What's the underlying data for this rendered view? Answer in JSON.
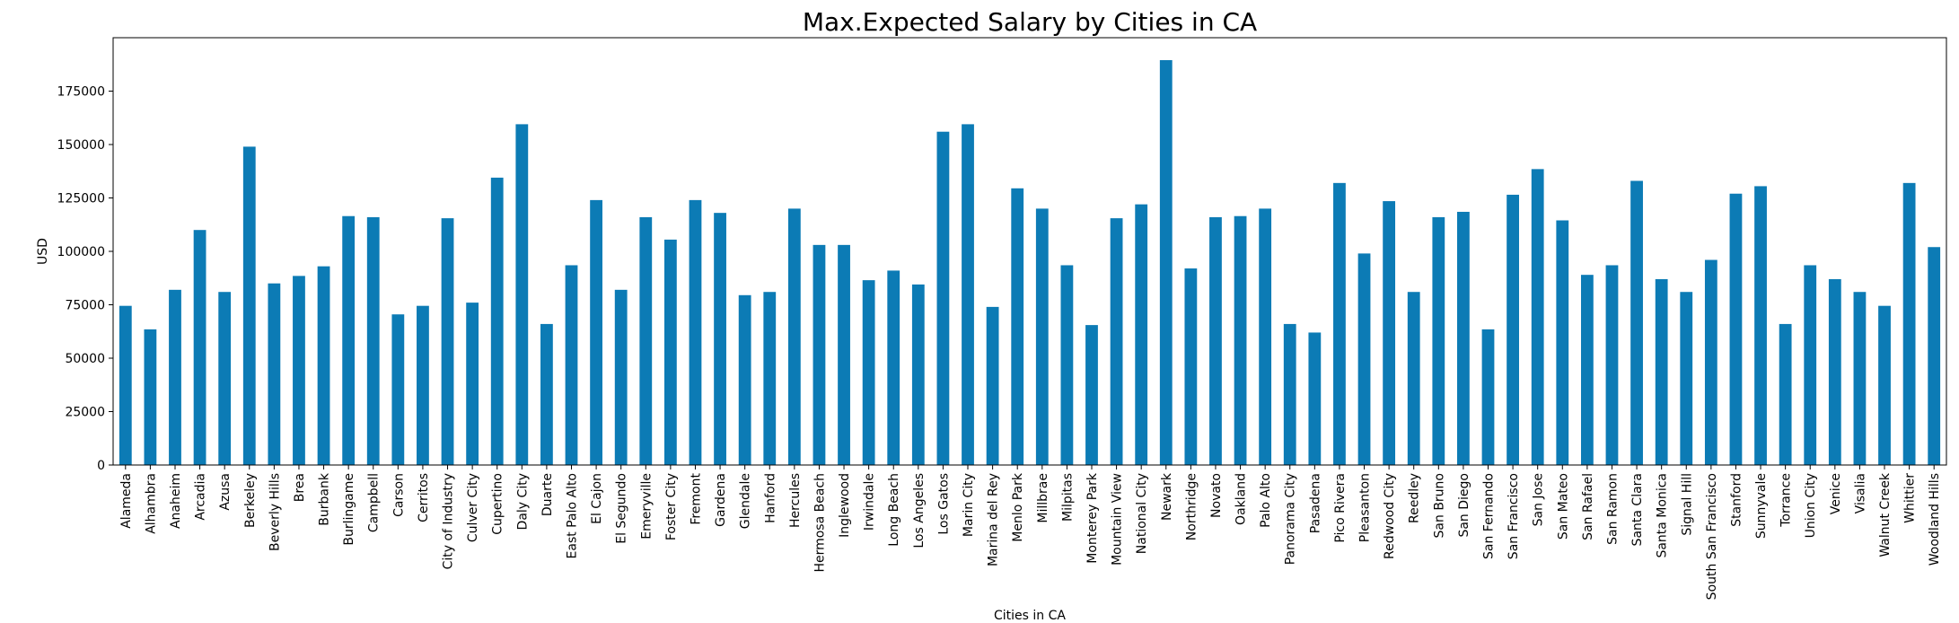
{
  "chart_data": {
    "type": "bar",
    "title": "Max.Expected Salary by Cities in CA",
    "xlabel": "Cities in CA",
    "ylabel": "USD",
    "ylim": [
      0,
      200000
    ],
    "yticks": [
      0,
      25000,
      50000,
      75000,
      100000,
      125000,
      150000,
      175000
    ],
    "ytick_labels": [
      "0",
      "25000",
      "50000",
      "75000",
      "100000",
      "125000",
      "150000",
      "175000"
    ],
    "grid": false,
    "bar_color": "#0c7bb5",
    "categories": [
      "Alameda",
      "Alhambra",
      "Anaheim",
      "Arcadia",
      "Azusa",
      "Berkeley",
      "Beverly Hills",
      "Brea",
      "Burbank",
      "Burlingame",
      "Campbell",
      "Carson",
      "Cerritos",
      "City of Industry",
      "Culver City",
      "Cupertino",
      "Daly City",
      "Duarte",
      "East Palo Alto",
      "El Cajon",
      "El Segundo",
      "Emeryville",
      "Foster City",
      "Fremont",
      "Gardena",
      "Glendale",
      "Hanford",
      "Hercules",
      "Hermosa Beach",
      "Inglewood",
      "Irwindale",
      "Long Beach",
      "Los Angeles",
      "Los Gatos",
      "Marin City",
      "Marina del Rey",
      "Menlo Park",
      "Millbrae",
      "Milpitas",
      "Monterey Park",
      "Mountain View",
      "National City",
      "Newark",
      "Northridge",
      "Novato",
      "Oakland",
      "Palo Alto",
      "Panorama City",
      "Pasadena",
      "Pico Rivera",
      "Pleasanton",
      "Redwood City",
      "Reedley",
      "San Bruno",
      "San Diego",
      "San Fernando",
      "San Francisco",
      "San Jose",
      "San Mateo",
      "San Rafael",
      "San Ramon",
      "Santa Clara",
      "Santa Monica",
      "Signal Hill",
      "South San Francisco",
      "Stanford",
      "Sunnyvale",
      "Torrance",
      "Union City",
      "Venice",
      "Visalia",
      "Walnut Creek",
      "Whittier",
      "Woodland Hills"
    ],
    "values": [
      74500,
      63500,
      82000,
      110000,
      81000,
      149000,
      85000,
      88500,
      93000,
      116500,
      116000,
      70500,
      74500,
      115500,
      76000,
      134500,
      159500,
      66000,
      93500,
      124000,
      82000,
      116000,
      105500,
      124000,
      118000,
      79500,
      81000,
      120000,
      103000,
      103000,
      86500,
      91000,
      84500,
      156000,
      159500,
      74000,
      129500,
      120000,
      93500,
      65500,
      115500,
      122000,
      189500,
      92000,
      116000,
      116500,
      120000,
      66000,
      62000,
      132000,
      99000,
      123500,
      81000,
      116000,
      118500,
      63500,
      126500,
      138500,
      114500,
      89000,
      93500,
      133000,
      87000,
      81000,
      96000,
      127000,
      130500,
      66000,
      93500,
      87000,
      81000,
      74500,
      132000,
      102000
    ]
  }
}
